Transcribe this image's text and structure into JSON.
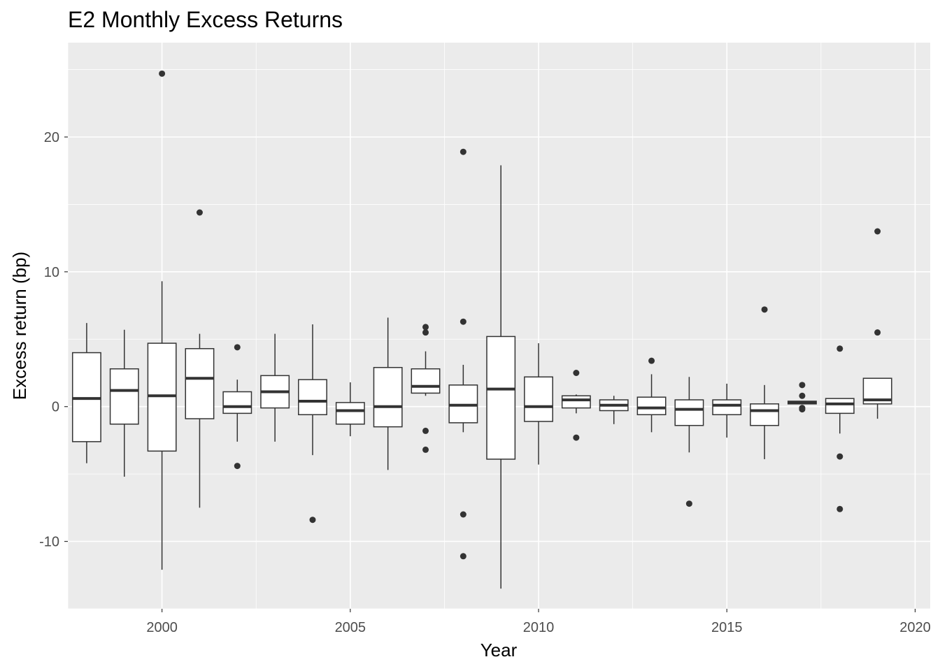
{
  "chart_data": {
    "type": "boxplot",
    "title": "E2 Monthly Excess Returns",
    "xlabel": "Year",
    "ylabel": "Excess return (bp)",
    "xlim": [
      1997.5,
      2020.4
    ],
    "ylim": [
      -15,
      27
    ],
    "x_ticks": [
      2000,
      2005,
      2010,
      2015,
      2020
    ],
    "y_ticks": [
      -10,
      0,
      10,
      20
    ],
    "grid": true,
    "colors": {
      "panel_background": "#ebebeb",
      "grid": "#ffffff",
      "box_fill": "#ffffff",
      "box_stroke": "#333333"
    },
    "boxes": [
      {
        "year": 1998,
        "whisker_low": -4.2,
        "q1": -2.6,
        "median": 0.6,
        "q3": 4.0,
        "whisker_high": 6.2,
        "outliers": []
      },
      {
        "year": 1999,
        "whisker_low": -5.2,
        "q1": -1.3,
        "median": 1.2,
        "q3": 2.8,
        "whisker_high": 5.7,
        "outliers": []
      },
      {
        "year": 2000,
        "whisker_low": -12.1,
        "q1": -3.3,
        "median": 0.8,
        "q3": 4.7,
        "whisker_high": 9.3,
        "outliers": [
          24.7
        ]
      },
      {
        "year": 2001,
        "whisker_low": -7.5,
        "q1": -0.9,
        "median": 2.1,
        "q3": 4.3,
        "whisker_high": 5.4,
        "outliers": [
          14.4
        ]
      },
      {
        "year": 2002,
        "whisker_low": -2.6,
        "q1": -0.5,
        "median": 0.0,
        "q3": 1.1,
        "whisker_high": 2.0,
        "outliers": [
          4.4,
          -4.4
        ]
      },
      {
        "year": 2003,
        "whisker_low": -2.6,
        "q1": -0.1,
        "median": 1.1,
        "q3": 2.3,
        "whisker_high": 5.4,
        "outliers": []
      },
      {
        "year": 2004,
        "whisker_low": -3.6,
        "q1": -0.6,
        "median": 0.4,
        "q3": 2.0,
        "whisker_high": 6.1,
        "outliers": [
          -8.4
        ]
      },
      {
        "year": 2005,
        "whisker_low": -2.2,
        "q1": -1.3,
        "median": -0.3,
        "q3": 0.3,
        "whisker_high": 1.8,
        "outliers": []
      },
      {
        "year": 2006,
        "whisker_low": -4.7,
        "q1": -1.5,
        "median": 0.0,
        "q3": 2.9,
        "whisker_high": 6.6,
        "outliers": []
      },
      {
        "year": 2007,
        "whisker_low": 0.8,
        "q1": 1.0,
        "median": 1.5,
        "q3": 2.8,
        "whisker_high": 4.1,
        "outliers": [
          5.9,
          5.5,
          -1.8,
          -3.2
        ]
      },
      {
        "year": 2008,
        "whisker_low": -1.9,
        "q1": -1.2,
        "median": 0.1,
        "q3": 1.6,
        "whisker_high": 3.1,
        "outliers": [
          18.9,
          6.3,
          -8.0,
          -11.1
        ]
      },
      {
        "year": 2009,
        "whisker_low": -13.5,
        "q1": -3.9,
        "median": 1.3,
        "q3": 5.2,
        "whisker_high": 17.9,
        "outliers": []
      },
      {
        "year": 2010,
        "whisker_low": -4.3,
        "q1": -1.1,
        "median": 0.0,
        "q3": 2.2,
        "whisker_high": 4.7,
        "outliers": []
      },
      {
        "year": 2011,
        "whisker_low": -0.5,
        "q1": -0.1,
        "median": 0.5,
        "q3": 0.8,
        "whisker_high": 0.9,
        "outliers": [
          2.5,
          -2.3
        ]
      },
      {
        "year": 2012,
        "whisker_low": -1.3,
        "q1": -0.3,
        "median": 0.1,
        "q3": 0.5,
        "whisker_high": 0.8,
        "outliers": []
      },
      {
        "year": 2013,
        "whisker_low": -1.9,
        "q1": -0.6,
        "median": -0.1,
        "q3": 0.7,
        "whisker_high": 2.4,
        "outliers": [
          3.4
        ]
      },
      {
        "year": 2014,
        "whisker_low": -3.4,
        "q1": -1.4,
        "median": -0.2,
        "q3": 0.5,
        "whisker_high": 2.2,
        "outliers": [
          -7.2
        ]
      },
      {
        "year": 2015,
        "whisker_low": -2.3,
        "q1": -0.6,
        "median": 0.1,
        "q3": 0.5,
        "whisker_high": 1.7,
        "outliers": []
      },
      {
        "year": 2016,
        "whisker_low": -3.9,
        "q1": -1.4,
        "median": -0.3,
        "q3": 0.2,
        "whisker_high": 1.6,
        "outliers": [
          7.2
        ]
      },
      {
        "year": 2017,
        "whisker_low": 0.2,
        "q1": 0.2,
        "median": 0.3,
        "q3": 0.4,
        "whisker_high": 0.4,
        "outliers": [
          1.6,
          0.8,
          -0.1,
          -0.2
        ]
      },
      {
        "year": 2018,
        "whisker_low": -2.0,
        "q1": -0.5,
        "median": 0.2,
        "q3": 0.6,
        "whisker_high": 0.6,
        "outliers": [
          4.3,
          -3.7,
          -7.6
        ]
      },
      {
        "year": 2019,
        "whisker_low": -0.9,
        "q1": 0.2,
        "median": 0.5,
        "q3": 2.1,
        "whisker_high": 2.1,
        "outliers": [
          13.0,
          5.5
        ]
      }
    ]
  }
}
